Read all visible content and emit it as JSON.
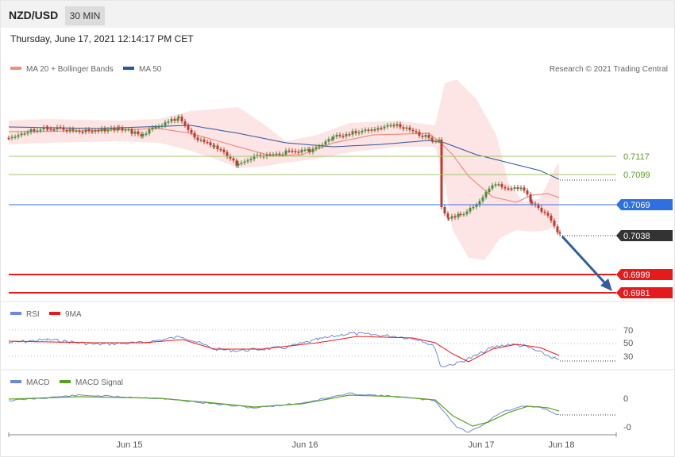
{
  "header": {
    "symbol": "NZD/USD",
    "timeframe": "30 MIN"
  },
  "datetime": "Thursday, June 17, 2021 12:14:17 PM CET",
  "credit": "Research © 2021 Trading Central",
  "colors": {
    "ma20": "#f28b82",
    "band_fill": "#fde0e0",
    "ma50": "#2f5597",
    "candle_up": "#4a8c3b",
    "candle_down": "#c0392b",
    "resistance": "#9cc76d",
    "support": "#e41a1c",
    "pivot": "#3a6fd8",
    "rsi": "#6a8ad8",
    "rsi_ma": "#e41a1c",
    "macd": "#6a8ad8",
    "macd_signal": "#5aa020"
  },
  "chart_data": [
    {
      "type": "candlestick",
      "panel": "price",
      "legend": [
        {
          "name": "MA 20 + Bollinger Bands",
          "color": "#f28b82"
        },
        {
          "name": "MA 50",
          "color": "#2f5597"
        }
      ],
      "x_ticks": [
        "Jun 15",
        "Jun 16",
        "Jun 17",
        "Jun 18"
      ],
      "ylim": [
        0.697,
        0.718
      ],
      "levels": [
        {
          "value": "0.7117",
          "kind": "resistance"
        },
        {
          "value": "0.7099",
          "kind": "resistance"
        },
        {
          "value": "0.7069",
          "kind": "pivot"
        },
        {
          "value": "0.7038",
          "kind": "last"
        },
        {
          "value": "0.6999",
          "kind": "support"
        },
        {
          "value": "0.6981",
          "kind": "support"
        }
      ],
      "forecast_arrow": {
        "from": 0.7038,
        "to": 0.6981
      }
    },
    {
      "type": "line",
      "panel": "rsi",
      "legend": [
        {
          "name": "RSI",
          "color": "#6a8ad8"
        },
        {
          "name": "9MA",
          "color": "#e41a1c"
        }
      ],
      "y_ticks": [
        "70",
        "50",
        "30"
      ],
      "ylim": [
        20,
        80
      ]
    },
    {
      "type": "line",
      "panel": "macd",
      "legend": [
        {
          "name": "MACD",
          "color": "#6a8ad8"
        },
        {
          "name": "MACD Signal",
          "color": "#5aa020"
        }
      ],
      "y_ticks": [
        "0",
        "-0"
      ]
    }
  ]
}
